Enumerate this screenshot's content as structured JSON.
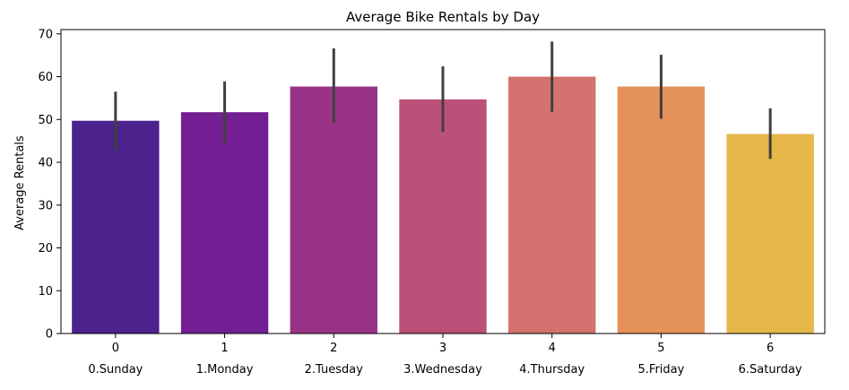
{
  "chart_data": {
    "type": "bar",
    "title": "Average Bike Rentals by Day",
    "xlabel": "",
    "ylabel": "Average Rentals",
    "ylim": [
      0,
      71
    ],
    "yticks": [
      0,
      10,
      20,
      30,
      40,
      50,
      60,
      70
    ],
    "grid": false,
    "legend": "none",
    "categories": [
      "0",
      "1",
      "2",
      "3",
      "4",
      "5",
      "6"
    ],
    "category_sublabels": [
      "0.Sunday",
      "1.Monday",
      "2.Tuesday",
      "3.Wednesday",
      "4.Thursday",
      "5.Friday",
      "6.Saturday"
    ],
    "values": [
      49.7,
      51.7,
      57.7,
      54.7,
      60.0,
      57.7,
      46.6
    ],
    "error_bars": [
      [
        42.7,
        56.5
      ],
      [
        44.5,
        58.9
      ],
      [
        49.3,
        66.6
      ],
      [
        47.1,
        62.4
      ],
      [
        51.8,
        68.2
      ],
      [
        50.2,
        65.1
      ],
      [
        40.8,
        52.6
      ]
    ],
    "colors": [
      "#4c228d",
      "#731f93",
      "#993387",
      "#bb5078",
      "#d3726e",
      "#e5915a",
      "#e6b649"
    ],
    "error_color": "#404040"
  }
}
